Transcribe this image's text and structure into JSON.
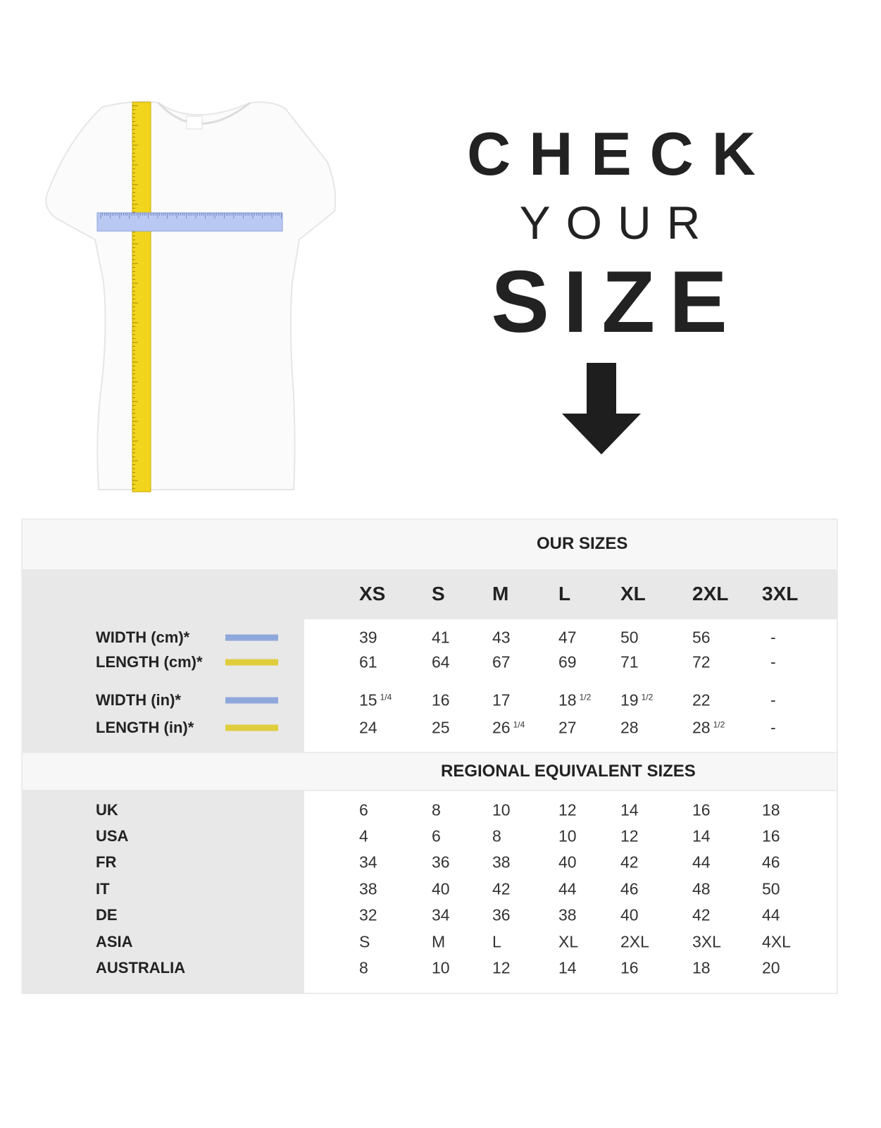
{
  "hero": {
    "line1": "CHECK",
    "line2": "YOUR",
    "line3": "SIZE",
    "arrow_icon": "arrow-down-icon"
  },
  "colors": {
    "width_swatch": "#8fa8dc",
    "length_swatch": "#e0cd3e",
    "gray_panel": "#e8e8e8",
    "light_panel": "#f7f7f7"
  },
  "table": {
    "our_sizes_title": "OUR SIZES",
    "sizes": [
      "XS",
      "S",
      "M",
      "L",
      "XL",
      "2XL",
      "3XL"
    ],
    "measurements": [
      {
        "label": "WIDTH (cm)*",
        "swatch": "width",
        "values": [
          [
            "39",
            ""
          ],
          [
            "41",
            ""
          ],
          [
            "43",
            ""
          ],
          [
            "47",
            ""
          ],
          [
            "50",
            ""
          ],
          [
            "56",
            ""
          ],
          [
            "-",
            ""
          ]
        ]
      },
      {
        "label": "LENGTH (cm)*",
        "swatch": "length",
        "values": [
          [
            "61",
            ""
          ],
          [
            "64",
            ""
          ],
          [
            "67",
            ""
          ],
          [
            "69",
            ""
          ],
          [
            "71",
            ""
          ],
          [
            "72",
            ""
          ],
          [
            "-",
            ""
          ]
        ]
      },
      {
        "label": "WIDTH (in)*",
        "swatch": "width",
        "values": [
          [
            "15",
            "1/4"
          ],
          [
            "16",
            ""
          ],
          [
            "17",
            ""
          ],
          [
            "18",
            "1/2"
          ],
          [
            "19",
            "1/2"
          ],
          [
            "22",
            ""
          ],
          [
            "-",
            ""
          ]
        ]
      },
      {
        "label": "LENGTH (in)*",
        "swatch": "length",
        "values": [
          [
            "24",
            ""
          ],
          [
            "25",
            ""
          ],
          [
            "26",
            "1/4"
          ],
          [
            "27",
            ""
          ],
          [
            "28",
            ""
          ],
          [
            "28",
            "1/2"
          ],
          [
            "-",
            ""
          ]
        ]
      }
    ],
    "regional_title": "REGIONAL EQUIVALENT SIZES",
    "regional": [
      {
        "label": "UK",
        "values": [
          "6",
          "8",
          "10",
          "12",
          "14",
          "16",
          "18"
        ]
      },
      {
        "label": "USA",
        "values": [
          "4",
          "6",
          "8",
          "10",
          "12",
          "14",
          "16"
        ]
      },
      {
        "label": "FR",
        "values": [
          "34",
          "36",
          "38",
          "40",
          "42",
          "44",
          "46"
        ]
      },
      {
        "label": "IT",
        "values": [
          "38",
          "40",
          "42",
          "44",
          "46",
          "48",
          "50"
        ]
      },
      {
        "label": "DE",
        "values": [
          "32",
          "34",
          "36",
          "38",
          "40",
          "42",
          "44"
        ]
      },
      {
        "label": "ASIA",
        "values": [
          "S",
          "M",
          "L",
          "XL",
          "2XL",
          "3XL",
          "4XL"
        ]
      },
      {
        "label": "AUSTRALIA",
        "values": [
          "8",
          "10",
          "12",
          "14",
          "16",
          "18",
          "20"
        ]
      }
    ]
  }
}
